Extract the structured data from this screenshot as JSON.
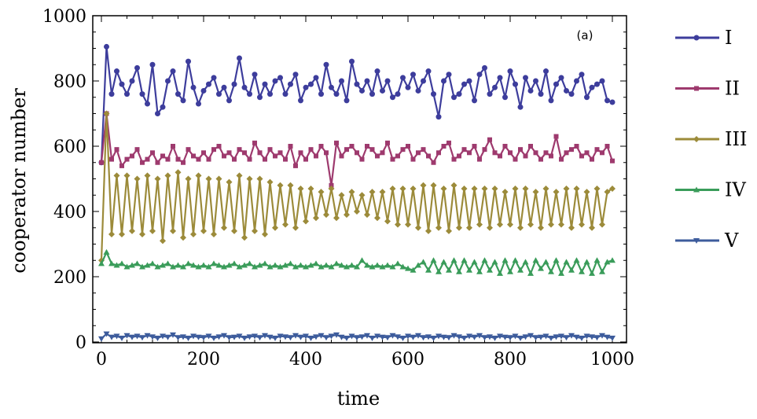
{
  "chart_data": {
    "type": "line",
    "title": "",
    "annotation": "(a)",
    "xlabel": "time",
    "ylabel": "cooperator  number",
    "xlim": [
      0,
      1000
    ],
    "ylim": [
      0,
      1000
    ],
    "xticks": [
      "0",
      "200",
      "400",
      "600",
      "800",
      "1000"
    ],
    "yticks": [
      "0",
      "200",
      "400",
      "600",
      "800",
      "1000"
    ],
    "grid": false,
    "legend_position": "right",
    "x_step": 10,
    "series": [
      {
        "name": "I",
        "color": "#3d3d9c",
        "marker": "circle",
        "values": [
          550,
          905,
          760,
          830,
          790,
          760,
          800,
          840,
          760,
          730,
          850,
          700,
          720,
          800,
          830,
          760,
          740,
          860,
          780,
          730,
          770,
          790,
          810,
          760,
          780,
          740,
          790,
          870,
          780,
          760,
          820,
          750,
          790,
          760,
          800,
          810,
          760,
          790,
          820,
          740,
          780,
          790,
          810,
          760,
          850,
          780,
          760,
          800,
          740,
          860,
          790,
          770,
          800,
          760,
          830,
          770,
          800,
          750,
          760,
          810,
          780,
          820,
          770,
          800,
          830,
          760,
          690,
          800,
          820,
          750,
          760,
          790,
          800,
          740,
          820,
          840,
          760,
          780,
          810,
          750,
          830,
          790,
          720,
          810,
          770,
          800,
          760,
          830,
          740,
          790,
          810,
          770,
          760,
          800,
          820,
          750,
          780,
          790,
          800,
          740,
          735
        ]
      },
      {
        "name": "II",
        "color": "#9e3a6e",
        "marker": "square",
        "values": [
          550,
          700,
          560,
          590,
          540,
          560,
          570,
          590,
          550,
          560,
          580,
          550,
          570,
          560,
          600,
          560,
          550,
          590,
          570,
          560,
          580,
          560,
          590,
          600,
          570,
          580,
          560,
          590,
          580,
          560,
          610,
          580,
          560,
          590,
          570,
          580,
          560,
          600,
          540,
          580,
          560,
          590,
          570,
          600,
          580,
          480,
          610,
          570,
          590,
          600,
          580,
          560,
          600,
          590,
          570,
          580,
          610,
          560,
          570,
          590,
          600,
          560,
          580,
          590,
          570,
          550,
          580,
          600,
          610,
          560,
          570,
          590,
          580,
          600,
          560,
          590,
          620,
          580,
          570,
          600,
          580,
          560,
          590,
          570,
          600,
          580,
          560,
          580,
          570,
          630,
          560,
          580,
          590,
          600,
          570,
          580,
          560,
          590,
          580,
          600,
          555
        ]
      },
      {
        "name": "III",
        "color": "#9c8b3a",
        "marker": "diamond",
        "values": [
          250,
          700,
          330,
          510,
          330,
          510,
          340,
          500,
          330,
          510,
          340,
          500,
          310,
          510,
          340,
          520,
          320,
          500,
          330,
          510,
          340,
          500,
          330,
          500,
          350,
          490,
          340,
          510,
          320,
          500,
          340,
          500,
          330,
          490,
          350,
          480,
          360,
          480,
          350,
          470,
          370,
          470,
          380,
          460,
          390,
          470,
          380,
          450,
          390,
          460,
          400,
          450,
          390,
          460,
          380,
          460,
          370,
          470,
          360,
          470,
          360,
          470,
          350,
          480,
          340,
          480,
          350,
          470,
          340,
          480,
          350,
          470,
          350,
          470,
          360,
          470,
          350,
          470,
          360,
          460,
          360,
          470,
          350,
          470,
          360,
          460,
          350,
          470,
          360,
          460,
          360,
          470,
          350,
          470,
          360,
          460,
          350,
          470,
          360,
          460,
          470
        ]
      },
      {
        "name": "IV",
        "color": "#3a9c5a",
        "marker": "triangle-up",
        "values": [
          240,
          275,
          240,
          235,
          240,
          230,
          235,
          240,
          230,
          235,
          240,
          230,
          235,
          240,
          230,
          235,
          230,
          240,
          235,
          230,
          235,
          230,
          240,
          235,
          230,
          235,
          240,
          230,
          235,
          240,
          230,
          235,
          240,
          230,
          235,
          230,
          235,
          240,
          230,
          235,
          230,
          235,
          240,
          230,
          235,
          230,
          240,
          235,
          230,
          235,
          230,
          250,
          235,
          230,
          235,
          230,
          235,
          230,
          240,
          230,
          225,
          220,
          235,
          245,
          220,
          250,
          215,
          245,
          220,
          250,
          215,
          250,
          220,
          245,
          215,
          250,
          220,
          245,
          210,
          250,
          215,
          250,
          220,
          245,
          210,
          250,
          225,
          245,
          215,
          250,
          210,
          245,
          220,
          250,
          215,
          245,
          210,
          250,
          215,
          245,
          250
        ]
      },
      {
        "name": "V",
        "color": "#3d5c9c",
        "marker": "triangle-down",
        "values": [
          10,
          25,
          15,
          18,
          12,
          20,
          15,
          18,
          14,
          20,
          16,
          12,
          18,
          15,
          22,
          14,
          16,
          12,
          18,
          15,
          14,
          18,
          12,
          16,
          20,
          14,
          15,
          18,
          12,
          16,
          18,
          14,
          20,
          15,
          12,
          18,
          16,
          14,
          20,
          15,
          18,
          12,
          16,
          20,
          14,
          18,
          22,
          15,
          12,
          18,
          14,
          16,
          20,
          12,
          18,
          15,
          14,
          20,
          16,
          12,
          18,
          15,
          20,
          14,
          16,
          12,
          18,
          15,
          14,
          20,
          16,
          12,
          18,
          15,
          20,
          14,
          16,
          12,
          18,
          15,
          14,
          18,
          12,
          16,
          20,
          14,
          15,
          18,
          12,
          16,
          18,
          14,
          20,
          15,
          12,
          18,
          16,
          14,
          20,
          15,
          12
        ]
      }
    ]
  }
}
